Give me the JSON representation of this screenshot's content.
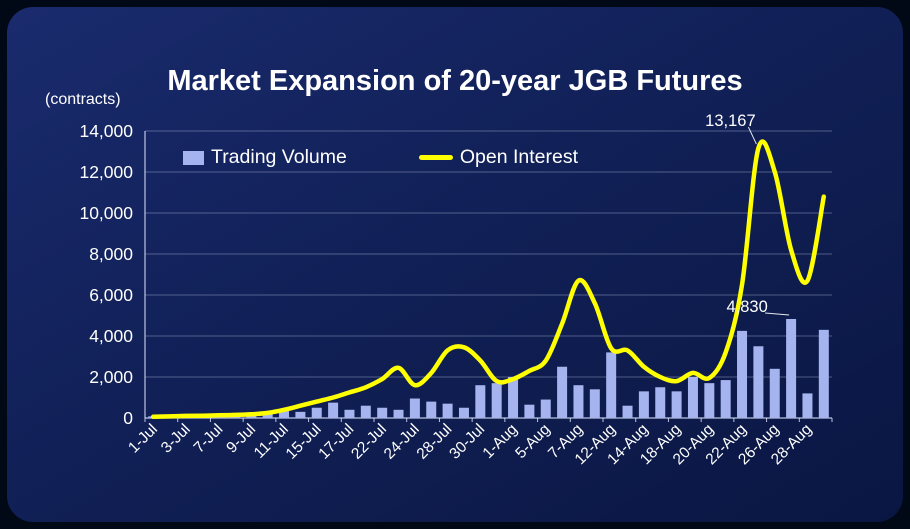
{
  "chart_data": {
    "type": "combo",
    "title": "Market Expansion of 20-year JGB Futures",
    "unit_label": "(contracts)",
    "ylim": [
      0,
      14000
    ],
    "grid": "horizontal",
    "legend_position": "top-left-inside",
    "background_color": "#112057",
    "y_tick_labels": [
      "0",
      "2,000",
      "4,000",
      "6,000",
      "8,000",
      "10,000",
      "12,000",
      "14,000"
    ],
    "x_tick_labels": [
      "1-Jul",
      "3-Jul",
      "7-Jul",
      "9-Jul",
      "11-Jul",
      "15-Jul",
      "17-Jul",
      "22-Jul",
      "24-Jul",
      "28-Jul",
      "30-Jul",
      "1-Aug",
      "5-Aug",
      "7-Aug",
      "12-Aug",
      "14-Aug",
      "18-Aug",
      "20-Aug",
      "22-Aug",
      "26-Aug",
      "28-Aug"
    ],
    "x_tick_every": 2,
    "series": [
      {
        "name": "Trading Volume",
        "type": "bar",
        "color": "#a5b3ee",
        "values": [
          80,
          120,
          60,
          50,
          100,
          150,
          120,
          250,
          350,
          300,
          500,
          750,
          400,
          600,
          500,
          400,
          950,
          800,
          700,
          500,
          1600,
          1700,
          2000,
          650,
          900,
          2500,
          1600,
          1400,
          3200,
          600,
          1300,
          1500,
          1300,
          2000,
          1700,
          1850,
          4250,
          3500,
          2400,
          4830,
          1200,
          4300
        ]
      },
      {
        "name": "Open Interest",
        "type": "line",
        "color": "#ffff00",
        "values": [
          60,
          80,
          100,
          110,
          130,
          150,
          180,
          250,
          400,
          600,
          800,
          1000,
          1250,
          1500,
          1900,
          2450,
          1600,
          2200,
          3300,
          3450,
          2800,
          1800,
          1900,
          2300,
          2800,
          4600,
          6700,
          5600,
          3400,
          3300,
          2500,
          2000,
          1800,
          2200,
          1950,
          3200,
          6500,
          13167,
          12000,
          8200,
          6700,
          10800
        ]
      }
    ],
    "annotations": [
      {
        "text": "13,167",
        "series": 1,
        "index": 37
      },
      {
        "text": "4,830",
        "series": 0,
        "index": 39
      }
    ]
  }
}
